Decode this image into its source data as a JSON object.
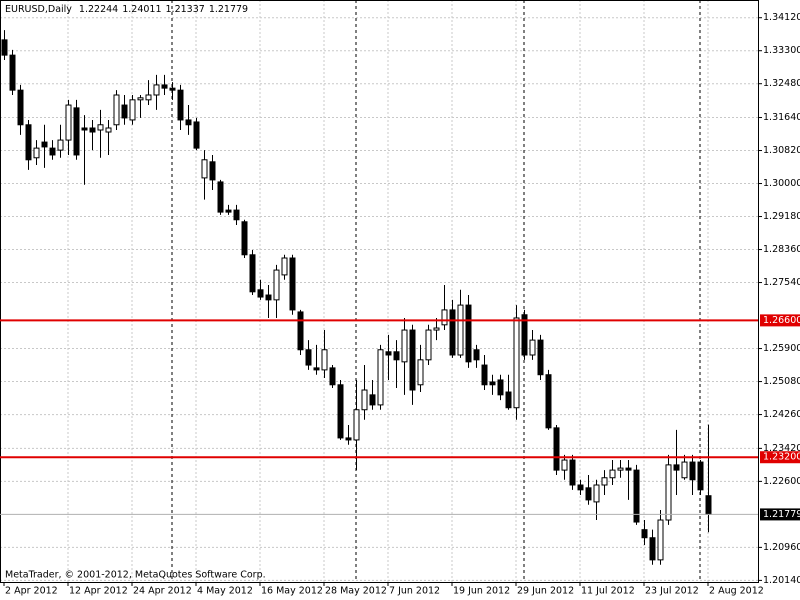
{
  "chart_data": {
    "type": "candlestick",
    "symbol": "EURUSD,Daily",
    "footer": "MetaTrader, © 2001-2012, MetaQuotes Software Corp.",
    "categories": [
      "2 Apr 2012",
      null,
      null,
      null,
      null,
      null,
      null,
      null,
      "12 Apr 2012",
      null,
      null,
      null,
      null,
      null,
      null,
      null,
      "24 Apr 2012",
      null,
      null,
      null,
      null,
      null,
      null,
      null,
      "4 May 2012",
      null,
      null,
      null,
      null,
      null,
      null,
      null,
      "16 May 2012",
      null,
      null,
      null,
      null,
      null,
      null,
      null,
      "28 May 2012",
      null,
      null,
      null,
      null,
      null,
      null,
      null,
      "7 Jun 2012",
      null,
      null,
      null,
      null,
      null,
      null,
      null,
      "19 Jun 2012",
      null,
      null,
      null,
      null,
      null,
      null,
      null,
      "29 Jun 2012",
      null,
      null,
      null,
      null,
      null,
      null,
      null,
      "11 Jul 2012",
      null,
      null,
      null,
      null,
      null,
      null,
      null,
      "23 Jul 2012",
      null,
      null,
      null,
      null,
      null,
      null,
      null,
      "2 Aug 2012"
    ],
    "open": [
      1.3357,
      1.3319,
      1.3232,
      1.3146,
      1.3064,
      1.3103,
      1.3088,
      1.3083,
      1.3108,
      1.3188,
      1.3138,
      1.3138,
      1.3133,
      1.3128,
      1.3146,
      1.3195,
      1.3158,
      1.3208,
      1.3208,
      1.322,
      1.3245,
      1.3237,
      1.3232,
      1.3158,
      1.3153,
      1.3014,
      1.3054,
      1.3004,
      1.2934,
      1.2934,
      1.2905,
      1.2823,
      1.2736,
      1.2723,
      1.2711,
      1.2773,
      1.2815,
      1.2681,
      1.2587,
      1.2542,
      1.2537,
      1.2542,
      1.25,
      1.2368,
      1.2363,
      1.2438,
      1.2475,
      1.245,
      1.2582,
      1.2582,
      1.2557,
      1.2636,
      1.25,
      1.2562,
      1.2636,
      1.2649,
      1.2686,
      1.2574,
      1.2698,
      1.2587,
      1.2549,
      1.2507,
      1.2512,
      1.2482,
      1.2443,
      1.2674,
      1.2574,
      1.2611,
      1.2525,
      1.2393,
      1.2288,
      1.2313,
      1.2251,
      1.2244,
      1.2209,
      1.2251,
      1.2269,
      1.2288,
      1.2293,
      1.2288,
      1.214,
      1.212,
      1.2065,
      1.2164,
      1.2301,
      1.2269,
      1.2308,
      1.2308,
      1.22244
    ],
    "high": [
      1.3381,
      1.3332,
      1.3245,
      1.3158,
      1.3108,
      1.3146,
      1.3108,
      1.3146,
      1.3208,
      1.3208,
      1.317,
      1.3158,
      1.3183,
      1.3158,
      1.3232,
      1.322,
      1.322,
      1.322,
      1.3257,
      1.327,
      1.327,
      1.3252,
      1.3245,
      1.3195,
      1.3163,
      1.3083,
      1.3071,
      1.3009,
      1.2947,
      1.2947,
      1.291,
      1.2835,
      1.2761,
      1.2748,
      1.2798,
      1.2823,
      1.2823,
      1.2686,
      1.2611,
      1.2599,
      1.2636,
      1.2549,
      1.2512,
      1.24,
      1.2512,
      1.2549,
      1.2512,
      1.2599,
      1.2624,
      1.2611,
      1.2666,
      1.2649,
      1.2599,
      1.2649,
      1.2666,
      1.2748,
      1.2711,
      1.2736,
      1.2723,
      1.2599,
      1.2574,
      1.2525,
      1.2525,
      1.2525,
      1.2698,
      1.2686,
      1.2636,
      1.2624,
      1.2537,
      1.24,
      1.2326,
      1.2326,
      1.2264,
      1.2276,
      1.2264,
      1.2288,
      1.2313,
      1.2313,
      1.2313,
      1.2301,
      1.2164,
      1.214,
      1.2189,
      1.2326,
      1.2388,
      1.2326,
      1.2326,
      1.2313,
      1.24011
    ],
    "low": [
      1.3307,
      1.322,
      1.3121,
      1.3034,
      1.3046,
      1.3039,
      1.3059,
      1.3064,
      1.3071,
      1.3059,
      1.2997,
      1.3083,
      1.3064,
      1.3071,
      1.3133,
      1.3146,
      1.3146,
      1.3163,
      1.3195,
      1.3183,
      1.322,
      1.3208,
      1.3133,
      1.3121,
      1.3083,
      1.296,
      1.2984,
      1.2922,
      1.2922,
      1.2897,
      1.2815,
      1.2723,
      1.2711,
      1.2666,
      1.2666,
      1.2761,
      1.2674,
      1.2574,
      1.2537,
      1.2525,
      1.2517,
      1.2492,
      1.2363,
      1.2351,
      1.2288,
      1.2413,
      1.2438,
      1.2438,
      1.2512,
      1.2492,
      1.2475,
      1.245,
      1.2482,
      1.2549,
      1.2611,
      1.2636,
      1.2567,
      1.2567,
      1.2542,
      1.2542,
      1.2487,
      1.2475,
      1.2462,
      1.2438,
      1.2413,
      1.2562,
      1.2562,
      1.2512,
      1.2388,
      1.2276,
      1.2264,
      1.2239,
      1.2226,
      1.2202,
      1.2164,
      1.2226,
      1.2251,
      1.2269,
      1.2214,
      1.2152,
      1.2102,
      1.2053,
      1.2053,
      1.2152,
      1.2226,
      1.2264,
      1.2226,
      1.2226,
      1.21337
    ],
    "close": [
      1.3319,
      1.3232,
      1.3146,
      1.3059,
      1.3088,
      1.3091,
      1.3071,
      1.3108,
      1.3195,
      1.3071,
      1.3133,
      1.3128,
      1.3146,
      1.3138,
      1.322,
      1.3163,
      1.3208,
      1.3213,
      1.322,
      1.3245,
      1.3237,
      1.3232,
      1.3158,
      1.3146,
      1.3088,
      1.3059,
      1.3009,
      1.2929,
      1.2929,
      1.291,
      1.2823,
      1.2731,
      1.2718,
      1.2711,
      1.2785,
      1.2815,
      1.2686,
      1.2587,
      1.2549,
      1.2537,
      1.2587,
      1.25,
      1.2368,
      1.2363,
      1.2438,
      1.2487,
      1.245,
      1.2587,
      1.2574,
      1.2562,
      1.2636,
      1.2487,
      1.2562,
      1.2636,
      1.2641,
      1.2686,
      1.2574,
      1.2698,
      1.2557,
      1.2562,
      1.25,
      1.25,
      1.2475,
      1.2443,
      1.2666,
      1.2574,
      1.2611,
      1.2525,
      1.2393,
      1.2288,
      1.2313,
      1.2251,
      1.2239,
      1.2214,
      1.2251,
      1.2269,
      1.2288,
      1.2293,
      1.2288,
      1.2159,
      1.212,
      1.2065,
      1.2164,
      1.2301,
      1.2288,
      1.2308,
      1.2264,
      1.2239,
      1.21779
    ],
    "ylim": [
      1.201,
      1.3456
    ],
    "yticks": [
      {
        "value": 1.3412,
        "label": "1.34120"
      },
      {
        "value": 1.333,
        "label": "1.33300"
      },
      {
        "value": 1.3248,
        "label": "1.32480"
      },
      {
        "value": 1.3164,
        "label": "1.31640"
      },
      {
        "value": 1.3082,
        "label": "1.30820"
      },
      {
        "value": 1.3,
        "label": "1.30000"
      },
      {
        "value": 1.2918,
        "label": "1.29180"
      },
      {
        "value": 1.2836,
        "label": "1.28360"
      },
      {
        "value": 1.2754,
        "label": "1.27540"
      },
      {
        "value": 1.259,
        "label": "1.25900"
      },
      {
        "value": 1.2508,
        "label": "1.25080"
      },
      {
        "value": 1.2426,
        "label": "1.24260"
      },
      {
        "value": 1.2342,
        "label": "1.23420"
      },
      {
        "value": 1.226,
        "label": "1.22600"
      },
      {
        "value": 1.2096,
        "label": "1.20960"
      },
      {
        "value": 1.2014,
        "label": "1.20140"
      }
    ],
    "levels": [
      {
        "value": 1.266,
        "label": "1.26600"
      },
      {
        "value": 1.232,
        "label": "1.23200"
      }
    ],
    "grid": true,
    "up_color": "#ffffff",
    "down_color": "#000000",
    "level_color": "#e00000"
  }
}
